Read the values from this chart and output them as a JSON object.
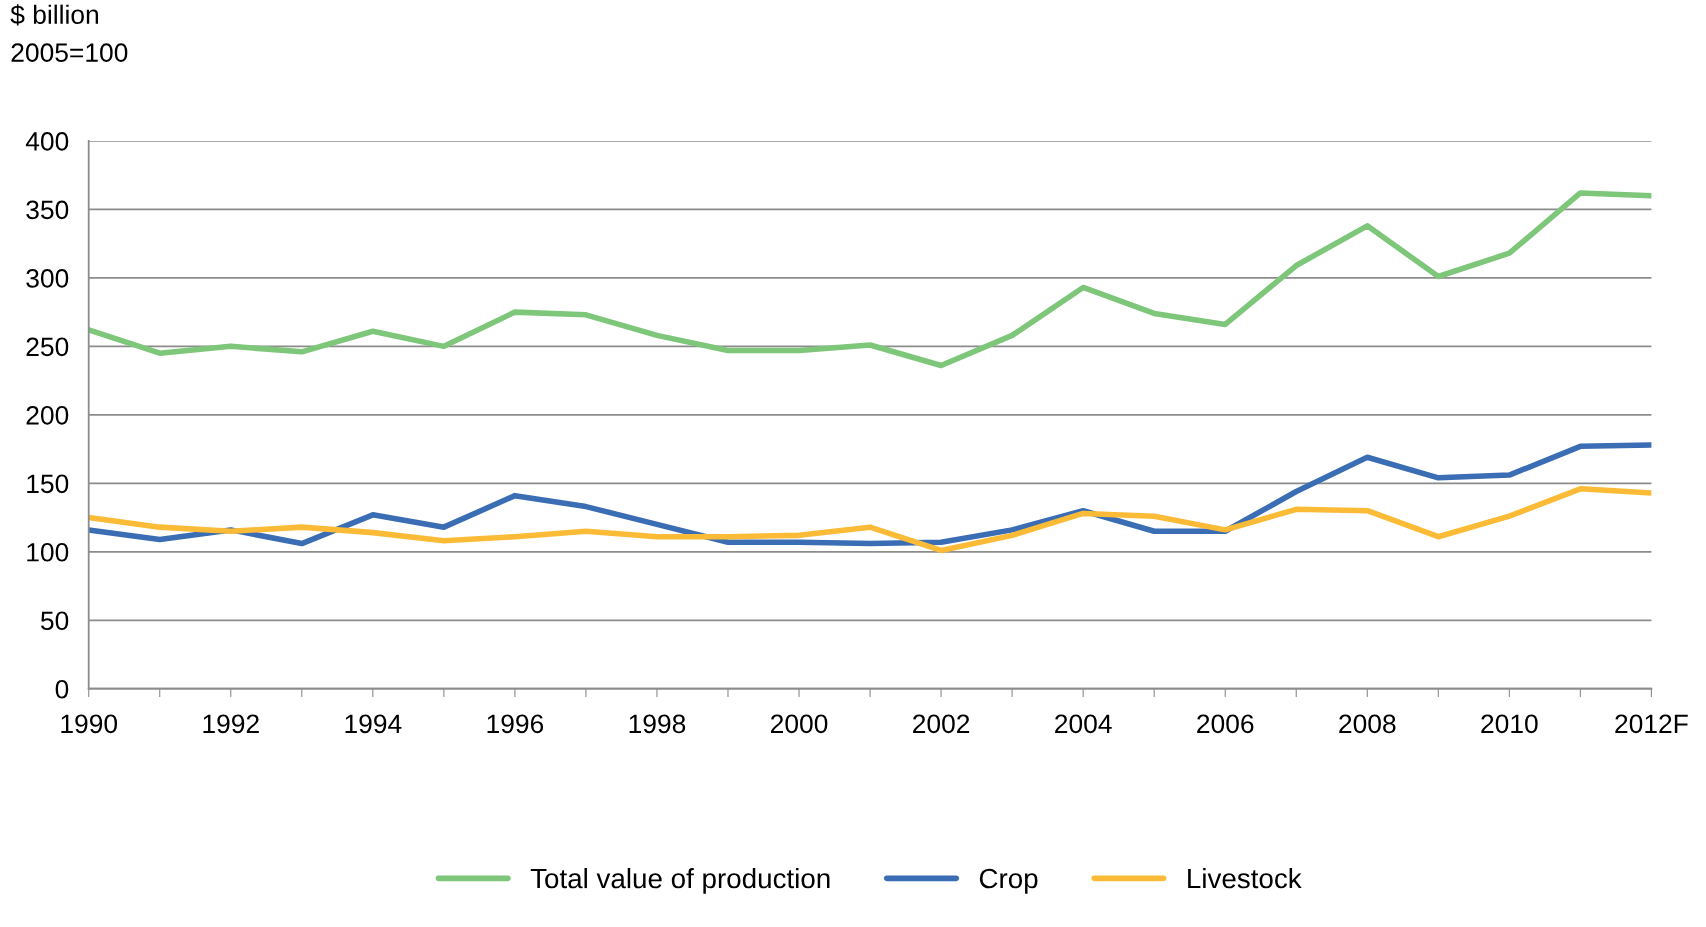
{
  "chart_data": {
    "type": "line",
    "ylabel": "$ billion\n2005=100",
    "categories": [
      "1990",
      null,
      "1992",
      null,
      "1994",
      null,
      "1996",
      null,
      "1998",
      null,
      "2000",
      null,
      "2002",
      null,
      "2004",
      null,
      "2006",
      null,
      "2008",
      null,
      "2010",
      null,
      "2012F"
    ],
    "series": [
      {
        "name": "Total value of production",
        "color": "#7dc67a",
        "values": [
          262,
          245,
          250,
          246,
          261,
          250,
          275,
          273,
          258,
          247,
          247,
          251,
          236,
          258,
          293,
          274,
          266,
          309,
          338,
          301,
          318,
          362,
          360
        ]
      },
      {
        "name": "Crop",
        "color": "#3a6db3",
        "values": [
          116,
          109,
          116,
          106,
          127,
          118,
          141,
          133,
          120,
          107,
          107,
          106,
          107,
          116,
          130,
          115,
          115,
          144,
          169,
          154,
          156,
          177,
          178
        ]
      },
      {
        "name": "Livestock",
        "color": "#fbbb36",
        "values": [
          125,
          118,
          115,
          118,
          114,
          108,
          111,
          115,
          111,
          111,
          112,
          118,
          101,
          112,
          128,
          126,
          116,
          131,
          130,
          111,
          126,
          146,
          143
        ]
      }
    ],
    "ylim": [
      0,
      400
    ],
    "yticks": [
      0,
      50,
      100,
      150,
      200,
      250,
      300,
      350,
      400
    ],
    "grid": "y",
    "legend": "bottom",
    "line_style": "solid",
    "marker": "none"
  }
}
